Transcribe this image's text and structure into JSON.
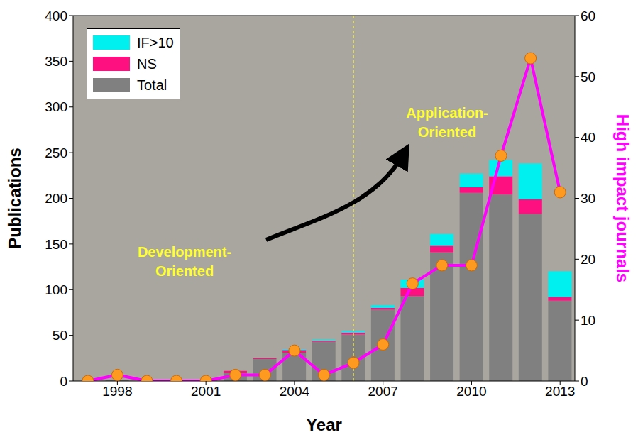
{
  "chart_data": {
    "type": "bar",
    "stacked": true,
    "grid": false,
    "legend": "upper left",
    "xlabel": "Year",
    "ylabel": "Publications",
    "y2label": "High impact journals",
    "x": [
      1997,
      1998,
      1999,
      2000,
      2001,
      2002,
      2003,
      2004,
      2005,
      2006,
      2007,
      2008,
      2009,
      2010,
      2011,
      2012,
      2013
    ],
    "xlim": [
      1996.5,
      2013.5
    ],
    "xticks": [
      1998,
      2001,
      2004,
      2007,
      2010,
      2013
    ],
    "ylim": [
      0,
      400
    ],
    "yticks": [
      0,
      50,
      100,
      150,
      200,
      250,
      300,
      350,
      400
    ],
    "y2lim": [
      0,
      60
    ],
    "y2ticks": [
      0,
      10,
      20,
      30,
      40,
      50,
      60
    ],
    "divider": 2006,
    "annotations": [
      {
        "text": [
          "Development-",
          "Oriented"
        ]
      },
      {
        "text": [
          "Application-",
          "Oriented"
        ]
      }
    ],
    "series": [
      {
        "name": "IF>10",
        "type": "bar",
        "color": "#00f0f0",
        "values": [
          0,
          0,
          0,
          0,
          0,
          0,
          0,
          1,
          1,
          2,
          3,
          9,
          13,
          15,
          18,
          39,
          28
        ]
      },
      {
        "name": "NS",
        "type": "bar",
        "color": "#ff1080",
        "values": [
          0,
          0,
          0,
          0,
          0,
          2,
          1,
          3,
          1,
          2,
          2,
          9,
          7,
          6,
          20,
          16,
          4
        ]
      },
      {
        "name": "Total",
        "type": "bar",
        "color": "#808080",
        "values": [
          0,
          1,
          0,
          1,
          1,
          9,
          24,
          31,
          43,
          51,
          78,
          93,
          141,
          206,
          204,
          183,
          88
        ]
      },
      {
        "name": "High impact journals",
        "type": "line",
        "axis": "y2",
        "color": "#ff00ff",
        "marker": "circle",
        "values": [
          0,
          1,
          0,
          0,
          0,
          1,
          1,
          5,
          1,
          3,
          6,
          16,
          19,
          19,
          37,
          53,
          31
        ]
      }
    ]
  }
}
